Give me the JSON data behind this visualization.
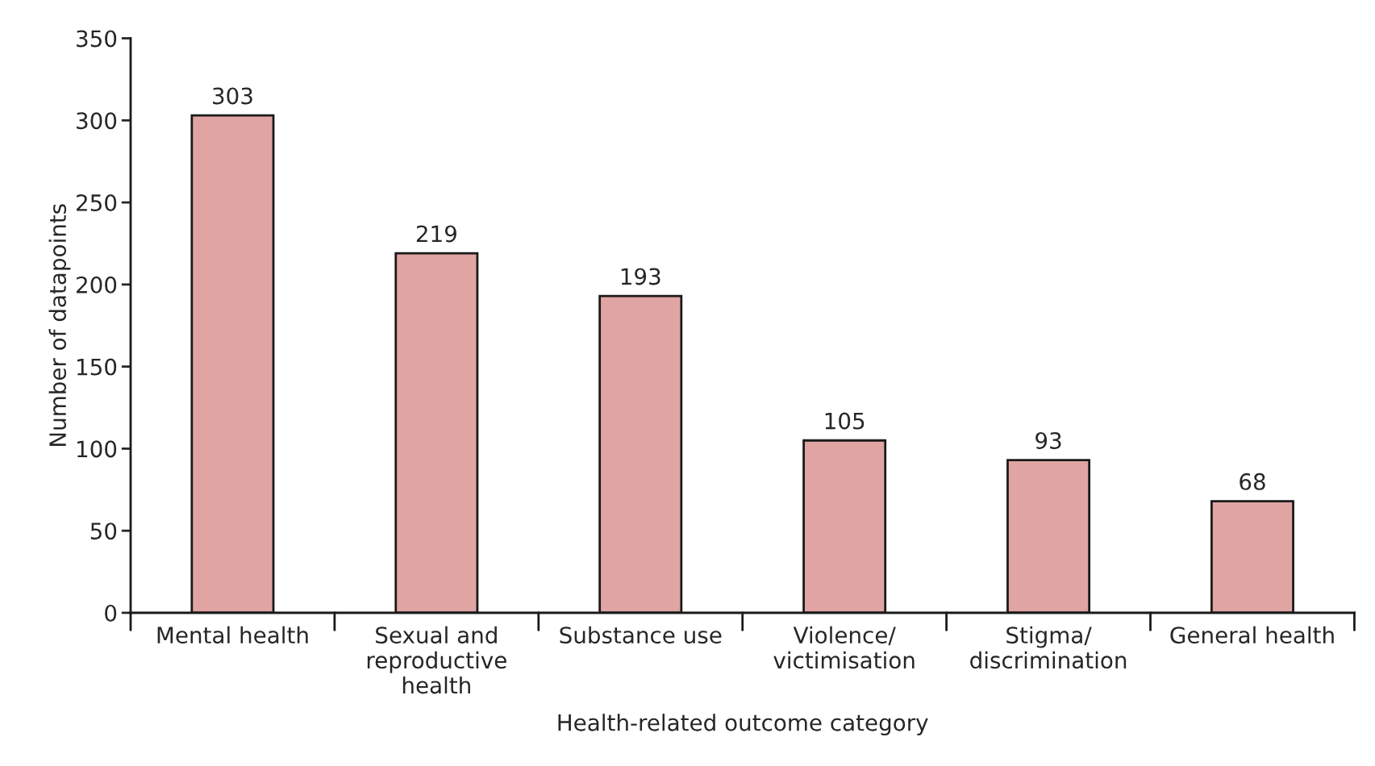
{
  "chart_data": {
    "type": "bar",
    "xlabel": "Health-related outcome category",
    "ylabel": "Number of datapoints",
    "categories": [
      "Mental health",
      "Sexual and\nreproductive\nhealth",
      "Substance use",
      "Violence/\nvictimisation",
      "Stigma/\ndiscrimination",
      "General health"
    ],
    "values": [
      303,
      219,
      193,
      105,
      93,
      68
    ],
    "color": "#e0a5a2",
    "ylim": [
      0,
      350
    ],
    "yticks": [
      0,
      50,
      100,
      150,
      200,
      250,
      300,
      350
    ],
    "data_labels": true,
    "grid": false,
    "legend": false
  }
}
